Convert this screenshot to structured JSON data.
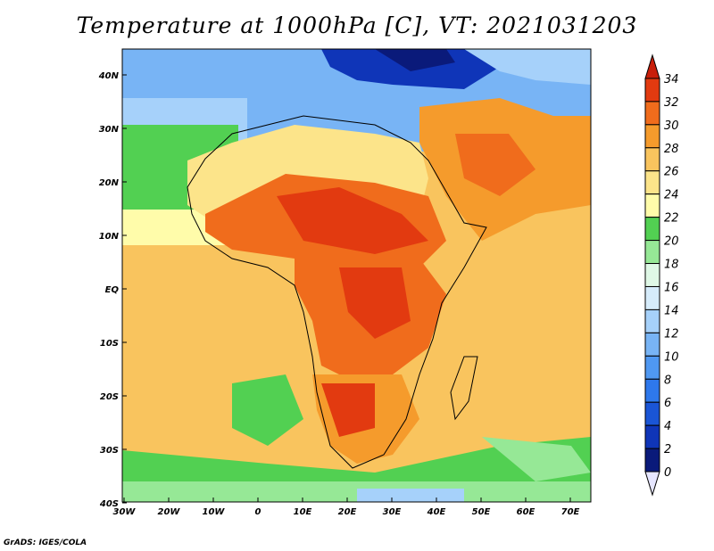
{
  "title": "Temperature at 1000hPa [C], VT: 2021031203",
  "credit": "GrADS: IGES/COLA",
  "map": {
    "lon_labels": [
      "30W",
      "20W",
      "10W",
      "0",
      "10E",
      "20E",
      "30E",
      "40E",
      "50E",
      "60E",
      "70E"
    ],
    "lat_labels": [
      "40N",
      "30N",
      "20N",
      "10N",
      "EQ",
      "10S",
      "20S",
      "30S",
      "40S"
    ]
  },
  "colorbar": {
    "levels": [
      "0",
      "2",
      "4",
      "6",
      "8",
      "10",
      "12",
      "14",
      "16",
      "18",
      "20",
      "22",
      "24",
      "26",
      "28",
      "30",
      "32",
      "34"
    ],
    "colors": [
      "#e6e6ff",
      "#0a1a7a",
      "#0f35b8",
      "#1a55d6",
      "#2e78ec",
      "#4f98f2",
      "#78b4f5",
      "#a6d1fa",
      "#d6ecfb",
      "#dff8e6",
      "#96e896",
      "#52d052",
      "#fffcaa",
      "#fce48a",
      "#f9c45e",
      "#f59b2c",
      "#f06c1c",
      "#e23a10",
      "#c81e0a"
    ]
  }
}
